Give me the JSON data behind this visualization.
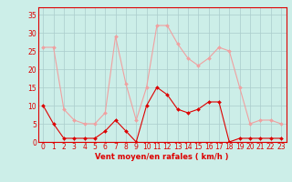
{
  "hours": [
    0,
    1,
    2,
    3,
    4,
    5,
    6,
    7,
    8,
    9,
    10,
    11,
    12,
    13,
    14,
    15,
    16,
    17,
    18,
    19,
    20,
    21,
    22,
    23
  ],
  "wind_avg": [
    10,
    5,
    1,
    1,
    1,
    1,
    3,
    6,
    3,
    0,
    10,
    15,
    13,
    9,
    8,
    9,
    11,
    11,
    0,
    1,
    1,
    1,
    1,
    1
  ],
  "wind_gust": [
    26,
    26,
    9,
    6,
    5,
    5,
    8,
    29,
    16,
    6,
    15,
    32,
    32,
    27,
    23,
    21,
    23,
    26,
    25,
    15,
    5,
    6,
    6,
    5
  ],
  "avg_color": "#dd0000",
  "gust_color": "#f0a0a0",
  "bg_color": "#cceee8",
  "grid_color": "#aacccc",
  "xlabel": "Vent moyen/en rafales ( km/h )",
  "ylabel_ticks": [
    0,
    5,
    10,
    15,
    20,
    25,
    30,
    35
  ],
  "ylim": [
    0,
    37
  ],
  "xlim": [
    -0.5,
    23.5
  ],
  "tick_fontsize": 5.5,
  "xlabel_fontsize": 6.0
}
